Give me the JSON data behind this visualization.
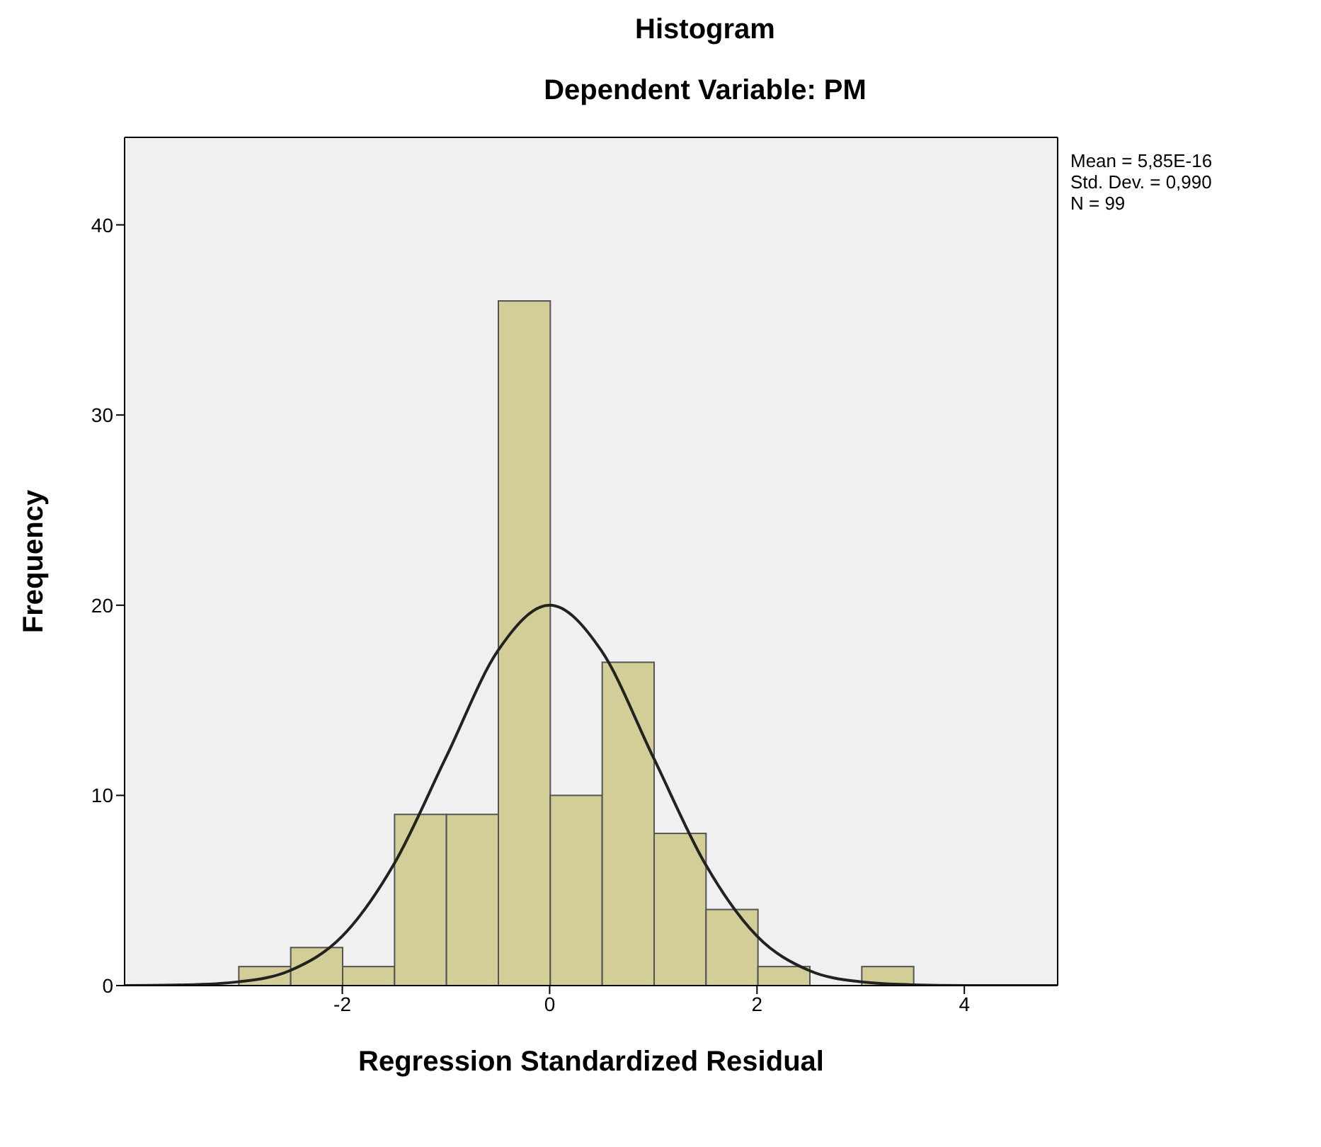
{
  "chart_data": {
    "type": "histogram",
    "title": "Histogram",
    "subtitle": "Dependent Variable: PM",
    "xlabel": "Regression Standardized Residual",
    "ylabel": "Frequency",
    "bins": [
      -3,
      -2.5,
      -2,
      -1.5,
      -1,
      -0.5,
      0,
      0.5,
      1,
      1.5,
      2,
      2.5,
      3,
      3.5
    ],
    "values": [
      1,
      2,
      1,
      9,
      9,
      36,
      10,
      17,
      8,
      4,
      1,
      0,
      1
    ],
    "color": "#d3ce97",
    "xlim": [
      -4.1,
      4.9
    ],
    "xticks": [
      -2,
      0,
      2,
      4
    ],
    "ylim": [
      0,
      44.6
    ],
    "yticks": [
      0,
      10,
      20,
      30,
      40
    ],
    "grid": false,
    "annotations": [
      "Mean = 5,85E-16",
      "Std. Dev. = 0,990",
      "N = 99"
    ],
    "series": [
      {
        "type": "line",
        "color": "#222222",
        "x": [
          -4.1,
          -3.5,
          -3,
          -2.5,
          -2,
          -1.5,
          -1,
          -0.5,
          0,
          0.5,
          1,
          1.5,
          2,
          2.5,
          3,
          3.5,
          4,
          4.9
        ],
        "values": [
          0,
          0.04,
          0.2,
          0.8,
          2.6,
          6.4,
          12,
          17.6,
          20,
          17.6,
          12,
          6.4,
          2.6,
          0.8,
          0.2,
          0.04,
          0,
          0
        ]
      }
    ]
  }
}
